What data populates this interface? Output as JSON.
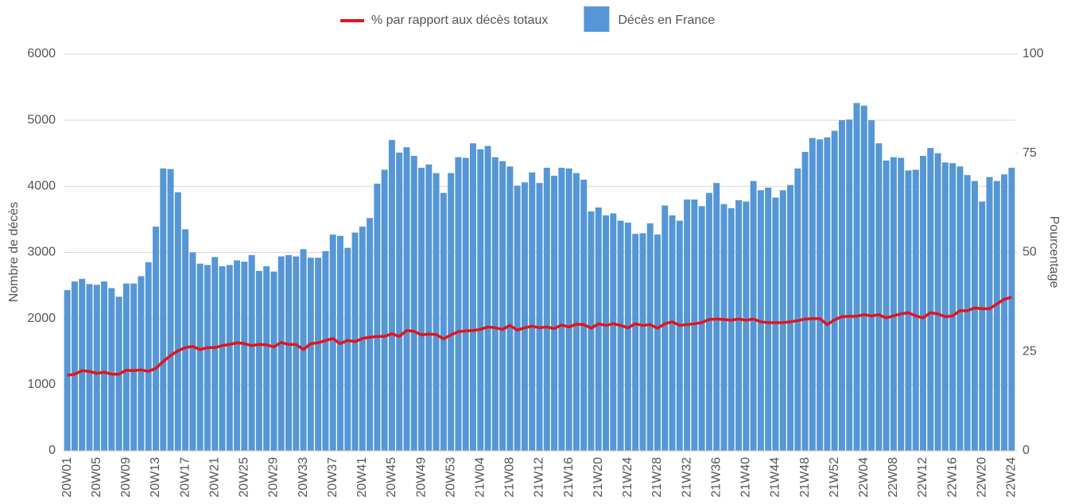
{
  "chart_data": {
    "type": "bar",
    "y_label": "Nombre de décès",
    "y2_label": "Pourcentage",
    "categories": [
      "20W01",
      null,
      null,
      null,
      "20W05",
      null,
      null,
      null,
      "20W09",
      null,
      null,
      null,
      "20W13",
      null,
      null,
      null,
      "20W17",
      null,
      null,
      null,
      "20W21",
      null,
      null,
      null,
      "20W25",
      null,
      null,
      null,
      "20W29",
      null,
      null,
      null,
      "20W33",
      null,
      null,
      null,
      "20W37",
      null,
      null,
      null,
      "20W41",
      null,
      null,
      null,
      "20W45",
      null,
      null,
      null,
      "20W49",
      null,
      null,
      null,
      "20W53",
      null,
      null,
      null,
      "21W04",
      null,
      null,
      null,
      "21W08",
      null,
      null,
      null,
      "21W12",
      null,
      null,
      null,
      "21W16",
      null,
      null,
      null,
      "21W20",
      null,
      null,
      null,
      "21W24",
      null,
      null,
      null,
      "21W28",
      null,
      null,
      null,
      "21W32",
      null,
      null,
      null,
      "21W36",
      null,
      null,
      null,
      "21W40",
      null,
      null,
      null,
      "21W44",
      null,
      null,
      null,
      "21W48",
      null,
      null,
      null,
      "21W52",
      null,
      null,
      null,
      "22W04",
      null,
      null,
      null,
      "22W08",
      null,
      null,
      null,
      "22W12",
      null,
      null,
      null,
      "22W16",
      null,
      null,
      null,
      "22W20",
      null,
      null,
      null,
      "22W24"
    ],
    "series": [
      {
        "name": "% par rapport aux décès totaux",
        "type": "line",
        "axis": "y2",
        "color": "#e3141b",
        "values": [
          19,
          19.3,
          20.2,
          20,
          19.5,
          19.8,
          19.3,
          19.3,
          20.3,
          20.2,
          20.4,
          20,
          20.8,
          22.5,
          24,
          25.2,
          26,
          26.3,
          25.5,
          26,
          26,
          26.5,
          26.8,
          27.2,
          27,
          26.5,
          26.8,
          26.7,
          26.2,
          27.3,
          26.8,
          26.8,
          25.5,
          27,
          27.2,
          27.8,
          28.3,
          27,
          27.8,
          27.5,
          28.3,
          28.6,
          28.8,
          28.8,
          29.5,
          28.8,
          30.3,
          30.1,
          29.2,
          29.4,
          29.3,
          28.2,
          29.2,
          30,
          30.2,
          30.3,
          30.6,
          31.2,
          31,
          30.6,
          31.6,
          30.4,
          31,
          31.4,
          31,
          31.2,
          30.8,
          31.7,
          31.2,
          31.9,
          31.8,
          30.9,
          32,
          31.6,
          32,
          31.6,
          31,
          32,
          31.6,
          31.8,
          30.9,
          32,
          32.5,
          31.6,
          31.8,
          32,
          32.3,
          33.1,
          33.2,
          33.1,
          32.9,
          33.2,
          32.9,
          33.2,
          32.5,
          32.3,
          32.3,
          32.3,
          32.5,
          32.8,
          33.2,
          33.3,
          33.3,
          31.8,
          33,
          33.8,
          33.9,
          33.9,
          34.3,
          34,
          34.3,
          33.5,
          34,
          34.5,
          34.8,
          34,
          33.5,
          34.8,
          34.5,
          33.8,
          34,
          35.3,
          35.3,
          36,
          35.8,
          35.8,
          37,
          38.2,
          38.7
        ]
      },
      {
        "name": "Décès en France",
        "type": "bar",
        "color": "#5597d6",
        "values": [
          2430,
          2560,
          2600,
          2520,
          2510,
          2560,
          2460,
          2330,
          2530,
          2530,
          2640,
          2850,
          3390,
          4270,
          4260,
          3910,
          3350,
          3000,
          2830,
          2810,
          2930,
          2790,
          2810,
          2880,
          2860,
          2960,
          2720,
          2790,
          2710,
          2940,
          2960,
          2940,
          3050,
          2920,
          2920,
          3020,
          3270,
          3250,
          3070,
          3300,
          3390,
          3520,
          4040,
          4250,
          4700,
          4510,
          4590,
          4460,
          4280,
          4330,
          4200,
          3900,
          4200,
          4440,
          4430,
          4650,
          4560,
          4610,
          4440,
          4380,
          4300,
          4010,
          4060,
          4210,
          4050,
          4280,
          4160,
          4280,
          4270,
          4200,
          4100,
          3620,
          3680,
          3560,
          3590,
          3480,
          3450,
          3280,
          3290,
          3440,
          3270,
          3710,
          3560,
          3480,
          3800,
          3800,
          3700,
          3900,
          4050,
          3730,
          3670,
          3790,
          3770,
          4080,
          3940,
          3980,
          3830,
          3940,
          4020,
          4270,
          4520,
          4730,
          4710,
          4740,
          4840,
          5000,
          5010,
          5260,
          5220,
          5000,
          4650,
          4390,
          4440,
          4430,
          4240,
          4250,
          4460,
          4580,
          4500,
          4360,
          4350,
          4300,
          4170,
          4080,
          3770,
          4140,
          4080,
          4180,
          4280
        ]
      }
    ],
    "ylim": [
      0,
      6000
    ],
    "yticks": [
      0,
      1000,
      2000,
      3000,
      4000,
      5000,
      6000
    ],
    "y2lim": [
      0,
      100
    ],
    "y2ticks": [
      0,
      25,
      50,
      75,
      100
    ],
    "grid": true,
    "legend": "top"
  }
}
